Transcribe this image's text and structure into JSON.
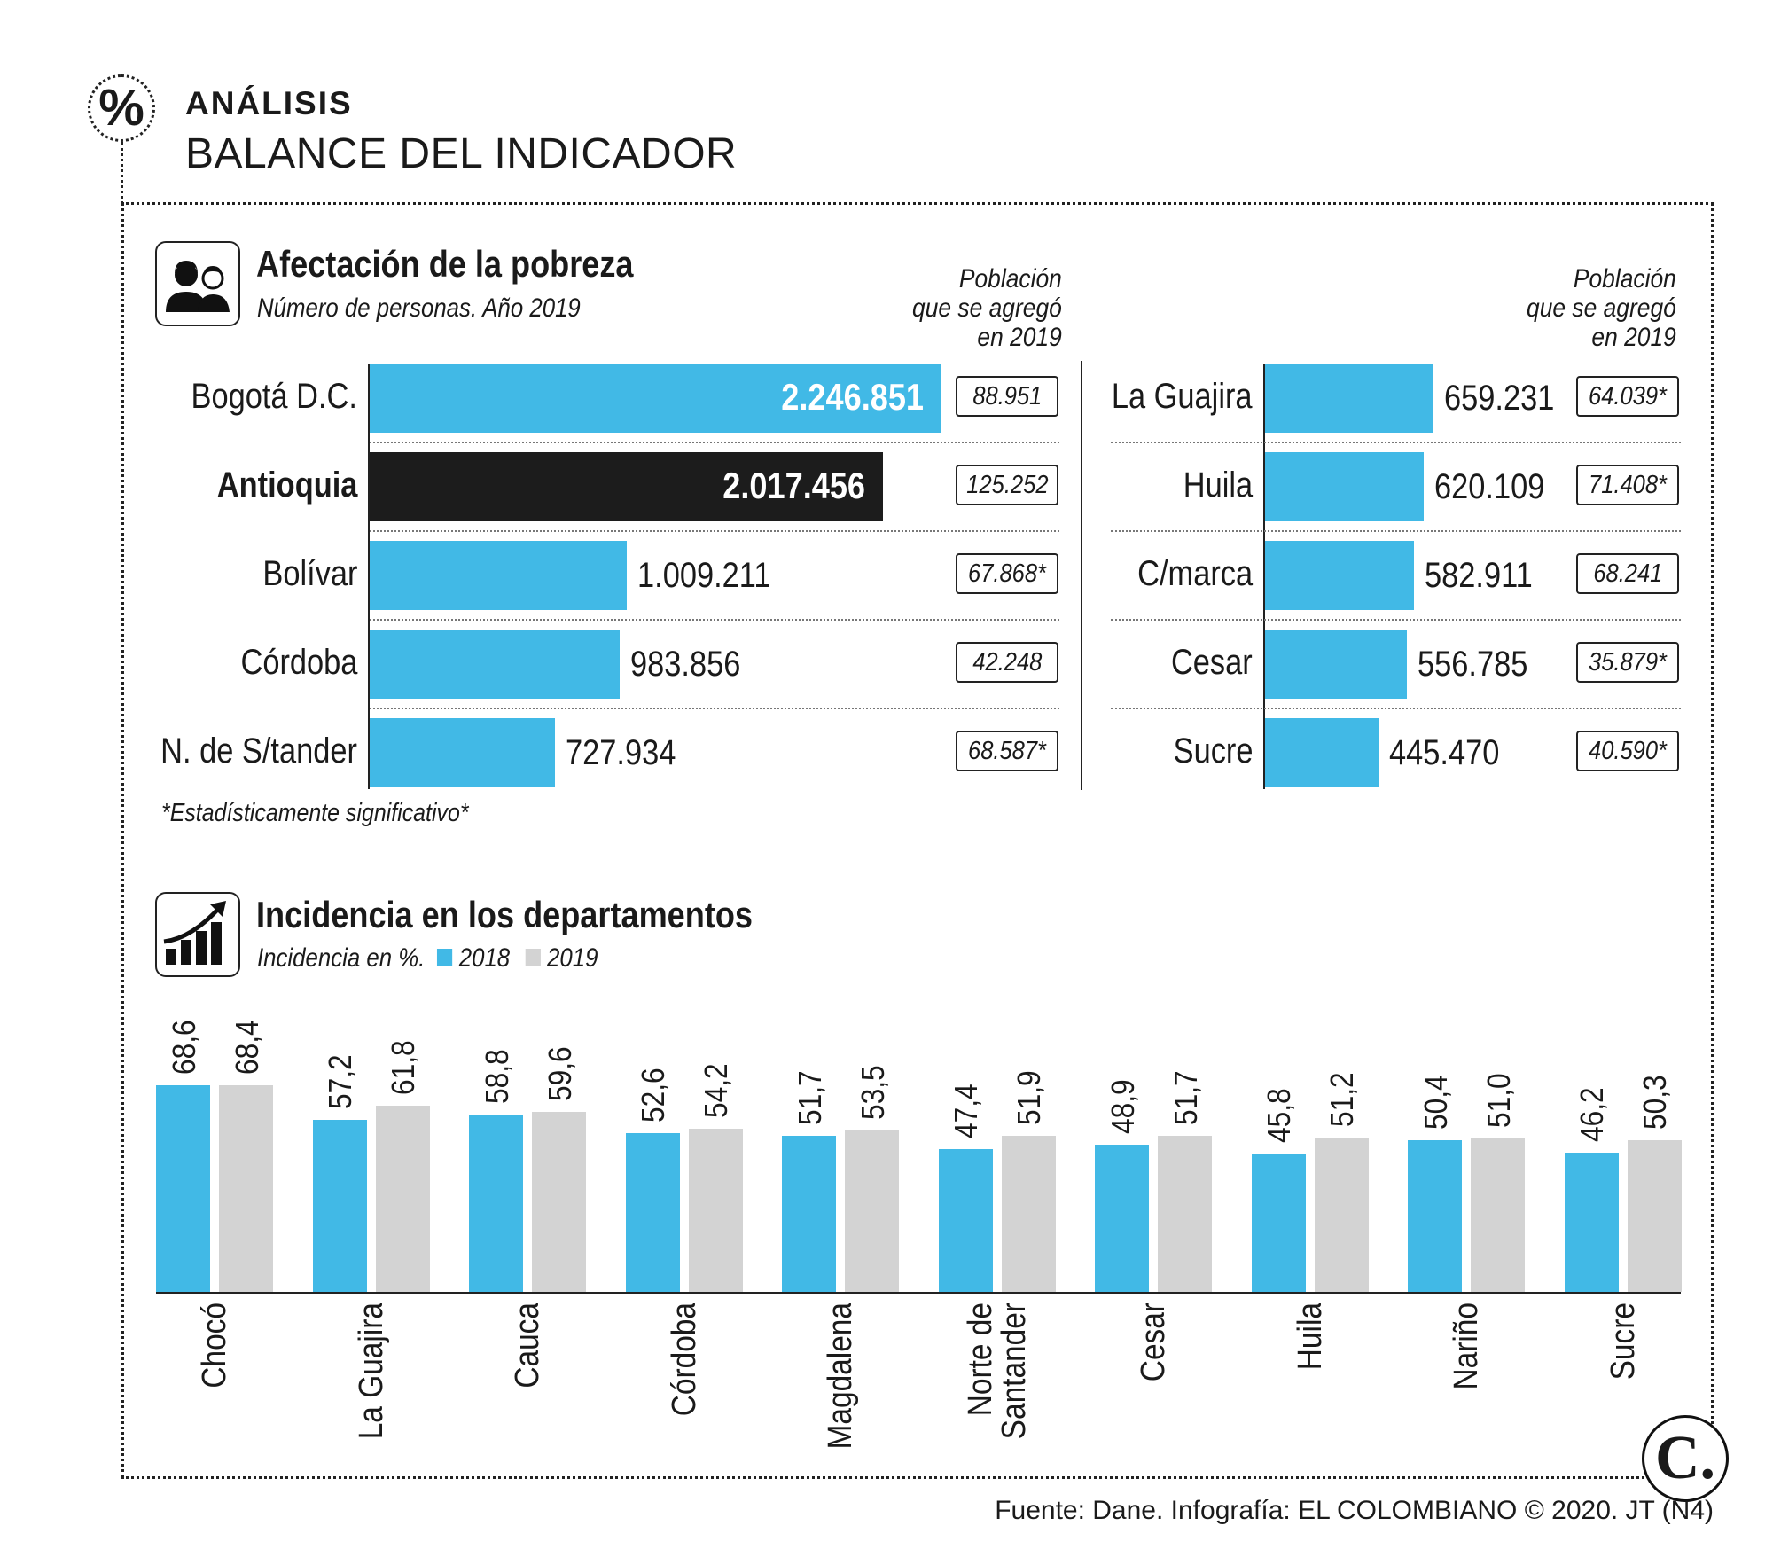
{
  "header": {
    "badge_symbol": "%",
    "kicker": "ANÁLISIS",
    "title": "BALANCE DEL INDICADOR"
  },
  "colors": {
    "blue": "#41b9e6",
    "black": "#1c1c1c",
    "gray": "#d3d3d3"
  },
  "poverty": {
    "icon": "people-icon",
    "title": "Afectación de la pobreza",
    "subtitle": "Número de personas. Año 2019",
    "added_header": [
      "Población",
      "que se agregó",
      "en 2019"
    ],
    "footnote": "*Estadísticamente significativo*"
  },
  "incidence": {
    "icon": "growth-chart-icon",
    "title": "Incidencia en los departamentos",
    "subtitle": "Incidencia en %.",
    "legend": [
      "2018",
      "2019"
    ]
  },
  "chart_data": [
    {
      "type": "bar",
      "orientation": "horizontal",
      "title": "Afectación de la pobreza",
      "subtitle": "Número de personas. Año 2019",
      "categories": [
        "Bogotá D.C.",
        "Antioquia",
        "Bolívar",
        "Córdoba",
        "N. de S/tander",
        "La Guajira",
        "Huila",
        "C/marca",
        "Cesar",
        "Sucre"
      ],
      "values": [
        2246851,
        2017456,
        1009211,
        983856,
        727934,
        659231,
        620109,
        582911,
        556785,
        445470
      ],
      "value_labels": [
        "2.246.851",
        "2.017.456",
        "1.009.211",
        "983.856",
        "727.934",
        "659.231",
        "620.109",
        "582.911",
        "556.785",
        "445.470"
      ],
      "added_2019": [
        "88.951",
        "125.252",
        "67.868*",
        "42.248",
        "68.587*",
        "64.039*",
        "71.408*",
        "68.241",
        "35.879*",
        "40.590*"
      ],
      "highlight": "Antioquia"
    },
    {
      "type": "bar",
      "orientation": "vertical",
      "title": "Incidencia en los departamentos",
      "ylabel": "Incidencia en %.",
      "categories": [
        "Chocó",
        "La Guajira",
        "Cauca",
        "Córdoba",
        "Magdalena",
        "Norte de Santander",
        "Cesar",
        "Huila",
        "Nariño",
        "Sucre"
      ],
      "category_lines": [
        [
          "Chocó"
        ],
        [
          "La Guajira"
        ],
        [
          "Cauca"
        ],
        [
          "Córdoba"
        ],
        [
          "Magdalena"
        ],
        [
          "Norte de",
          "Santander"
        ],
        [
          "Cesar"
        ],
        [
          "Huila"
        ],
        [
          "Nariño"
        ],
        [
          "Sucre"
        ]
      ],
      "series": [
        {
          "name": "2018",
          "values": [
            68.6,
            57.2,
            58.8,
            52.6,
            51.7,
            47.4,
            48.9,
            45.8,
            50.4,
            46.2
          ],
          "labels": [
            "68,6",
            "57,2",
            "58,8",
            "52,6",
            "51,7",
            "47,4",
            "48,9",
            "45,8",
            "50,4",
            "46,2"
          ]
        },
        {
          "name": "2019",
          "values": [
            68.4,
            61.8,
            59.6,
            54.2,
            53.5,
            51.9,
            51.7,
            51.2,
            51.0,
            50.3
          ],
          "labels": [
            "68,4",
            "61,8",
            "59,6",
            "54,2",
            "53,5",
            "51,9",
            "51,7",
            "51,2",
            "51,0",
            "50,3"
          ]
        }
      ]
    }
  ],
  "source": "Fuente: Dane. Infografía: EL COLOMBIANO © 2020. JT (N4)",
  "logo_text": "C."
}
